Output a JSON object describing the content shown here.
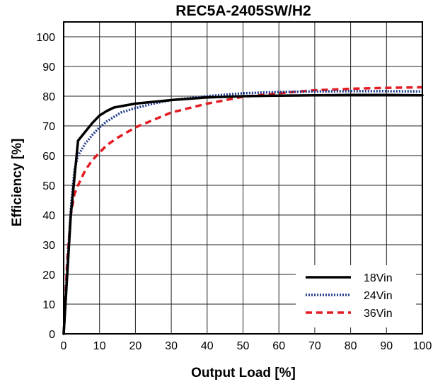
{
  "chart_data": {
    "type": "line",
    "title": "REC5A-2405SW/H2",
    "xlabel": "Output Load [%]",
    "ylabel": "Efficiency [%]",
    "xlim": [
      0,
      100
    ],
    "ylim": [
      0,
      105
    ],
    "x_ticks": [
      "0",
      "10",
      "20",
      "30",
      "40",
      "50",
      "60",
      "70",
      "80",
      "90",
      "100"
    ],
    "y_ticks": [
      "0",
      "10",
      "20",
      "30",
      "40",
      "50",
      "60",
      "70",
      "80",
      "90",
      "100"
    ],
    "grid": true,
    "legend_position": "bottom-right",
    "series": [
      {
        "name": "18Vin",
        "color": "#000000",
        "style": "solid",
        "x": [
          0,
          2,
          4,
          6,
          8,
          10,
          12,
          14,
          20,
          30,
          40,
          50,
          60,
          70,
          80,
          90,
          100
        ],
        "y": [
          0,
          40,
          65,
          68,
          71,
          73.5,
          75,
          76.2,
          77.5,
          78.7,
          79.6,
          80,
          80.2,
          80.3,
          80.4,
          80.4,
          80.3
        ]
      },
      {
        "name": "24Vin",
        "color": "#1f3a8a",
        "style": "dotted",
        "x": [
          0,
          1,
          2,
          3,
          4,
          6,
          8,
          10,
          12,
          14,
          16,
          20,
          25,
          30,
          40,
          50,
          60,
          70,
          80,
          90,
          100
        ],
        "y": [
          0,
          22,
          42,
          55,
          60,
          64,
          67,
          69.5,
          71.5,
          73,
          74.5,
          76,
          77.5,
          78.7,
          80,
          81,
          81.4,
          81.6,
          81.7,
          81.7,
          81.6
        ]
      },
      {
        "name": "36Vin",
        "color": "#e31b23",
        "style": "dashed",
        "x": [
          0,
          1,
          2,
          3,
          4,
          6,
          8,
          10,
          12,
          15,
          20,
          25,
          30,
          40,
          50,
          60,
          70,
          80,
          90,
          100
        ],
        "y": [
          0,
          25,
          40,
          47,
          50,
          55,
          58.5,
          61,
          63.5,
          66,
          69.5,
          72,
          74.5,
          77.5,
          79.8,
          81,
          82,
          82.5,
          82.8,
          83
        ]
      }
    ]
  }
}
